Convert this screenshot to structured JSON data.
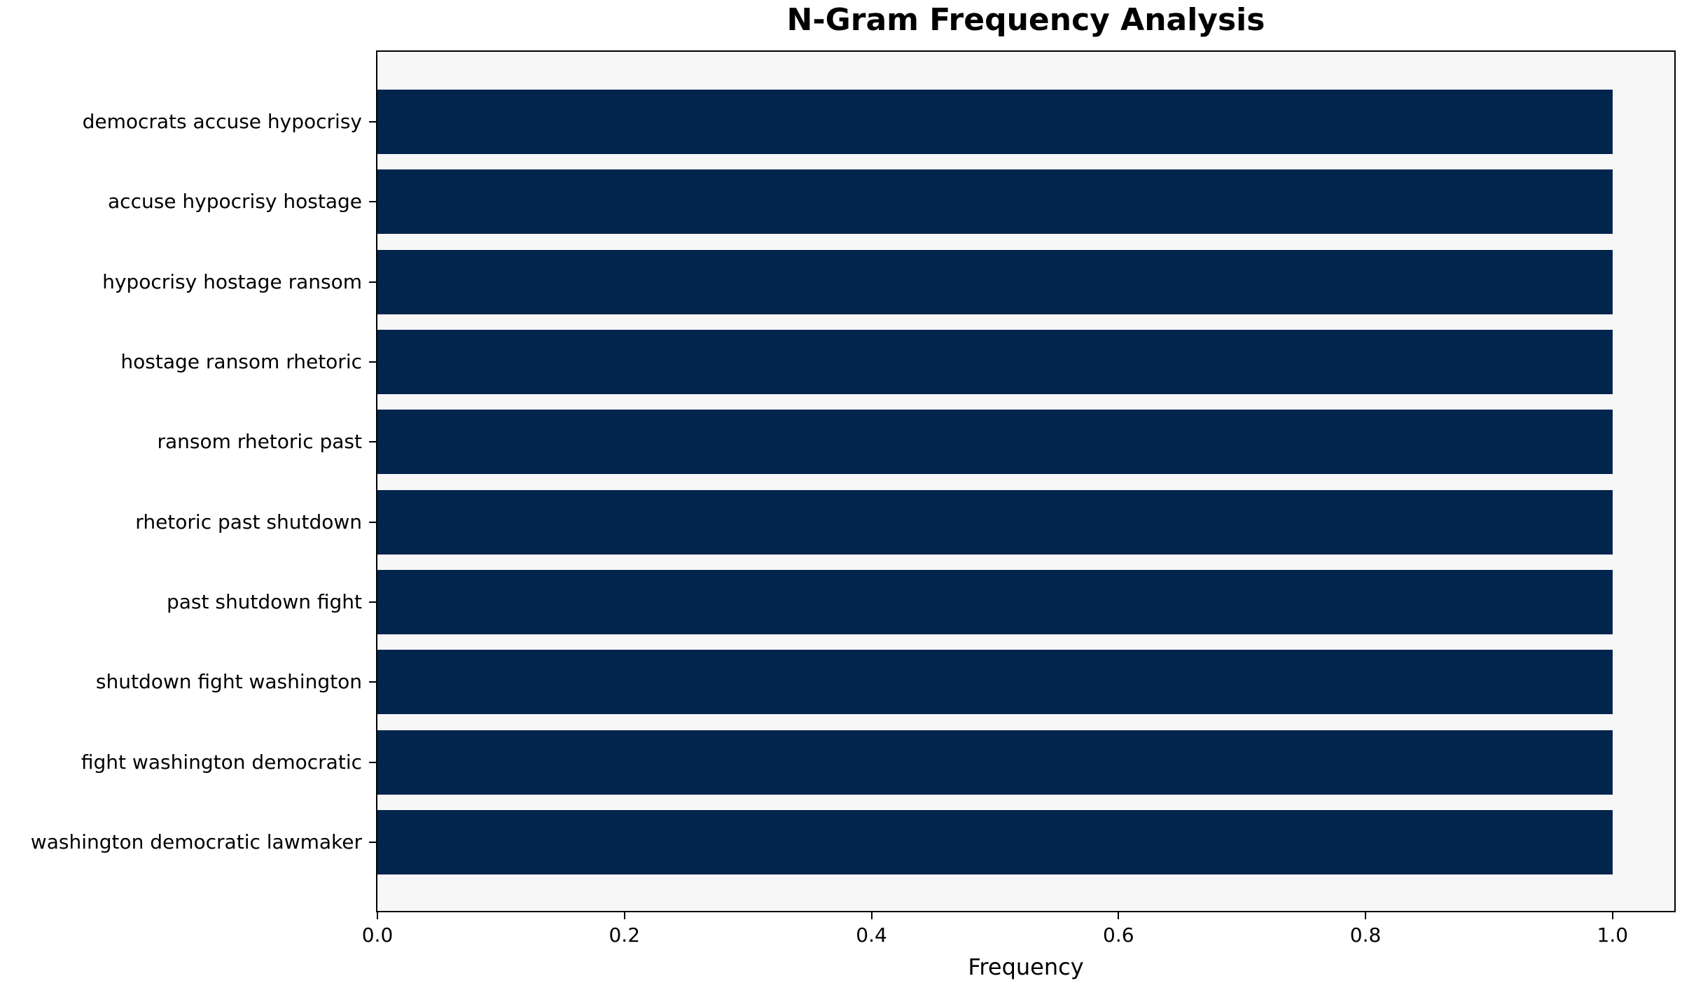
{
  "chart_data": {
    "type": "bar",
    "orientation": "horizontal",
    "title": "N-Gram Frequency Analysis",
    "xlabel": "Frequency",
    "ylabel": "",
    "categories": [
      "democrats accuse hypocrisy",
      "accuse hypocrisy hostage",
      "hypocrisy hostage ransom",
      "hostage ransom rhetoric",
      "ransom rhetoric past",
      "rhetoric past shutdown",
      "past shutdown fight",
      "shutdown fight washington",
      "fight washington democratic",
      "washington democratic lawmaker"
    ],
    "values": [
      1.0,
      1.0,
      1.0,
      1.0,
      1.0,
      1.0,
      1.0,
      1.0,
      1.0,
      1.0
    ],
    "xlim": [
      0,
      1.05
    ],
    "xticks": [
      "0.0",
      "0.2",
      "0.4",
      "0.6",
      "0.8",
      "1.0"
    ],
    "xtick_values": [
      0.0,
      0.2,
      0.4,
      0.6,
      0.8,
      1.0
    ],
    "grid": false,
    "legend_position": "none",
    "bar_height_fraction": 0.8,
    "colors": {
      "bar": "#02254d",
      "plot_background": "#f7f7f7",
      "figure_background": "#ffffff",
      "spine": "#000000",
      "text": "#000000"
    }
  }
}
